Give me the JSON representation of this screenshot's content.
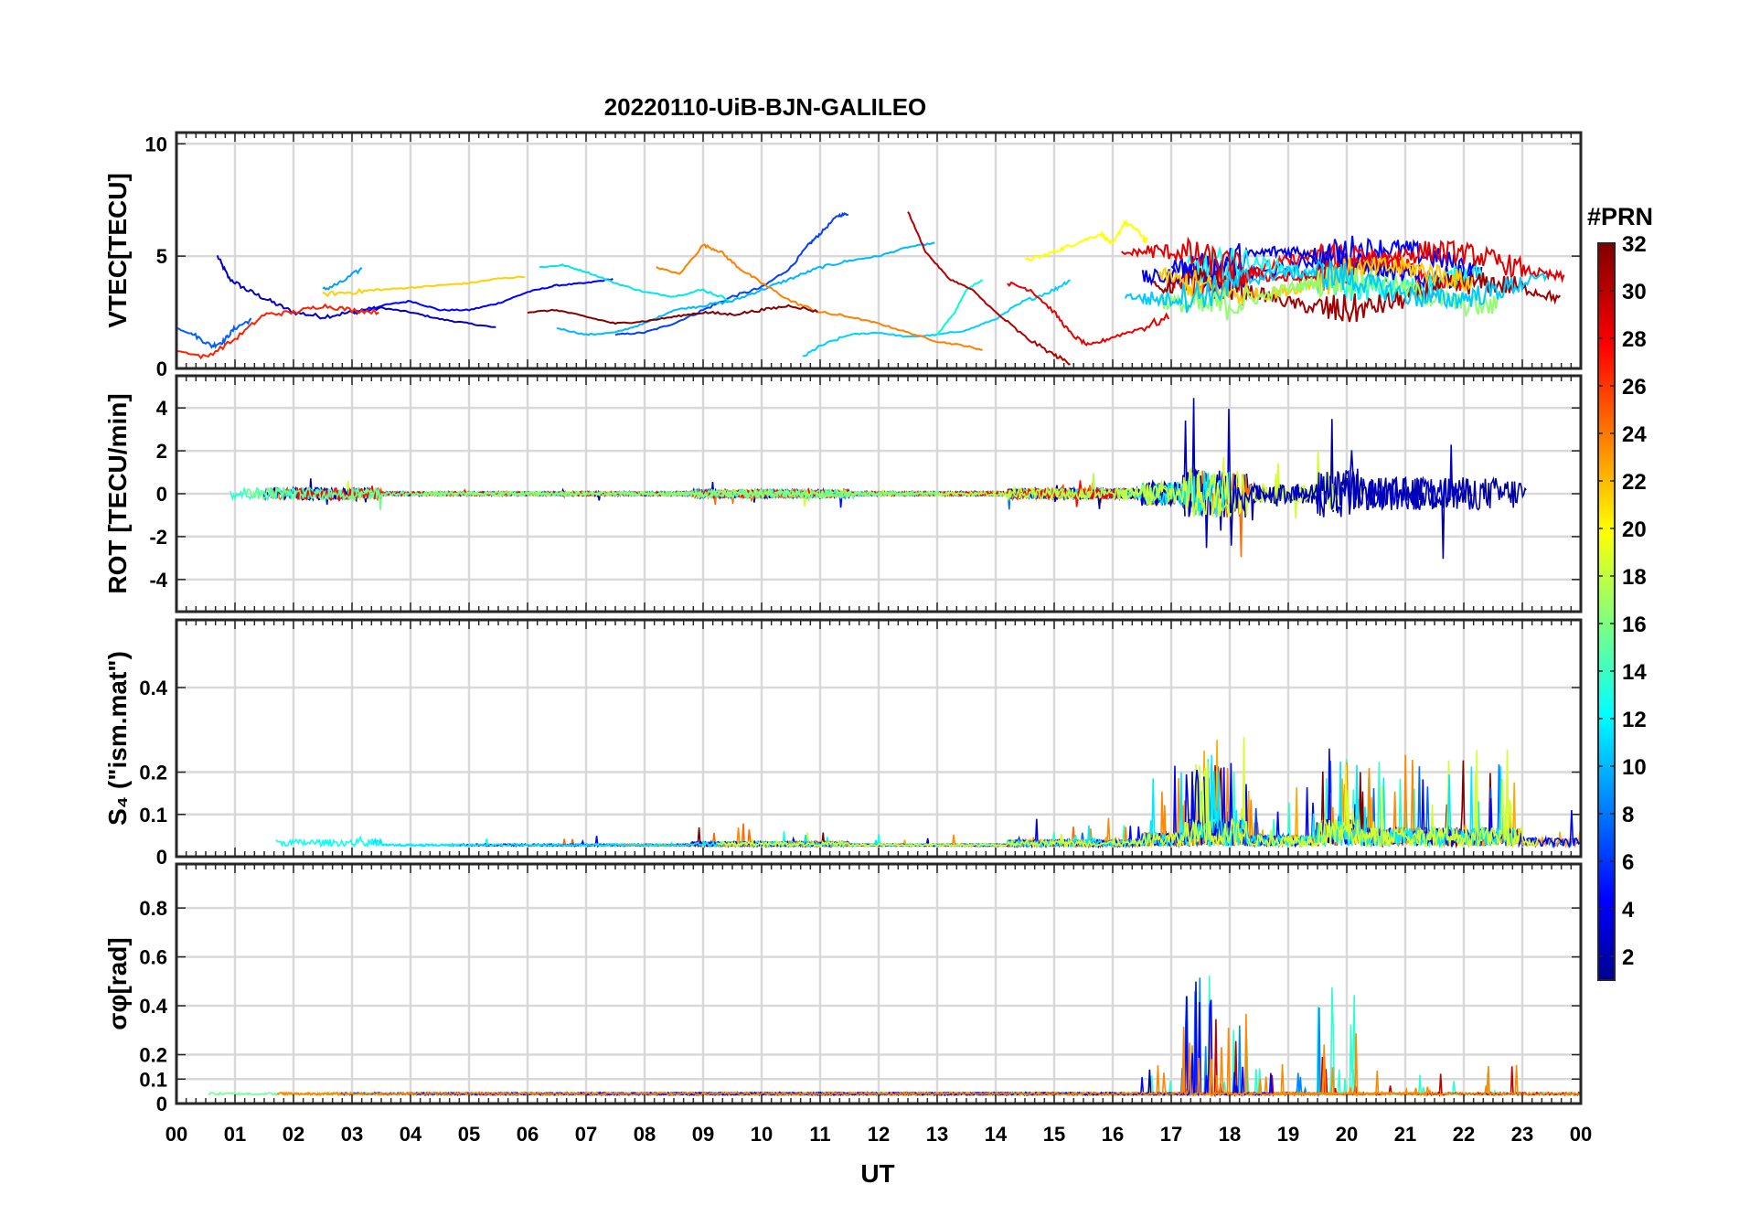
{
  "chart_data": {
    "type": "line",
    "title": "20220110-UiB-BJN-GALILEO",
    "xlabel": "UT",
    "x_ticks": [
      "00",
      "01",
      "02",
      "03",
      "04",
      "05",
      "06",
      "07",
      "08",
      "09",
      "10",
      "11",
      "12",
      "13",
      "14",
      "15",
      "16",
      "17",
      "18",
      "19",
      "20",
      "21",
      "22",
      "23",
      "00"
    ],
    "xlim": [
      0,
      24
    ],
    "grid": true,
    "colorbar": {
      "label": "#PRN",
      "ticks": [
        2,
        4,
        6,
        8,
        10,
        12,
        14,
        16,
        18,
        20,
        22,
        24,
        26,
        28,
        30,
        32
      ],
      "range": [
        1,
        32
      ],
      "colormap": "jet",
      "placement": "right"
    },
    "panels": [
      {
        "name": "vtec",
        "ylabel": "VTEC[TECU]",
        "ylim": [
          0,
          10.5
        ],
        "y_ticks": [
          0,
          5,
          10
        ],
        "series": [
          {
            "prn": 3,
            "color": "#0000c8",
            "points": [
              [
                0.7,
                5.0
              ],
              [
                0.9,
                4.0
              ],
              [
                1.2,
                3.5
              ],
              [
                1.6,
                3.0
              ],
              [
                2.0,
                2.5
              ],
              [
                2.5,
                2.3
              ],
              [
                3.0,
                2.5
              ],
              [
                3.5,
                2.7
              ],
              [
                4.0,
                2.5
              ],
              [
                4.5,
                2.2
              ],
              [
                5.0,
                2.0
              ],
              [
                5.5,
                1.8
              ]
            ]
          },
          {
            "prn": 5,
            "color": "#0000ff",
            "points": [
              [
                3.0,
                2.5
              ],
              [
                3.5,
                2.8
              ],
              [
                4.0,
                3.0
              ],
              [
                4.5,
                2.6
              ],
              [
                5.0,
                2.6
              ],
              [
                5.5,
                2.9
              ],
              [
                6.0,
                3.4
              ],
              [
                6.5,
                3.7
              ],
              [
                7.0,
                3.8
              ],
              [
                7.5,
                4.0
              ]
            ]
          },
          {
            "prn": 7,
            "color": "#0040ff",
            "points": [
              [
                7.5,
                1.5
              ],
              [
                8.0,
                1.6
              ],
              [
                8.5,
                2.0
              ],
              [
                9.0,
                2.6
              ],
              [
                9.5,
                3.2
              ],
              [
                10.0,
                3.6
              ],
              [
                10.5,
                4.5
              ],
              [
                10.8,
                5.5
              ],
              [
                11.0,
                6.0
              ],
              [
                11.3,
                6.8
              ],
              [
                11.5,
                6.9
              ]
            ]
          },
          {
            "prn": 8,
            "color": "#0060ff",
            "points": [
              [
                0.0,
                1.8
              ],
              [
                0.3,
                1.5
              ],
              [
                0.6,
                1.0
              ],
              [
                0.8,
                1.2
              ],
              [
                1.0,
                1.8
              ],
              [
                1.3,
                2.2
              ]
            ]
          },
          {
            "prn": 10,
            "color": "#00a0ff",
            "points": [
              [
                2.5,
                3.5
              ],
              [
                2.8,
                3.8
              ],
              [
                3.2,
                4.5
              ]
            ]
          },
          {
            "prn": 11,
            "color": "#00b8ff",
            "points": [
              [
                6.5,
                1.8
              ],
              [
                7.0,
                1.5
              ],
              [
                7.5,
                1.6
              ],
              [
                8.0,
                2.0
              ],
              [
                8.5,
                2.6
              ],
              [
                9.0,
                2.8
              ],
              [
                9.5,
                3.0
              ],
              [
                10.0,
                3.5
              ],
              [
                10.5,
                4.0
              ],
              [
                11.0,
                4.5
              ],
              [
                11.5,
                4.8
              ],
              [
                12.0,
                5.0
              ],
              [
                12.5,
                5.4
              ],
              [
                13.0,
                5.6
              ]
            ]
          },
          {
            "prn": 12,
            "color": "#00d0ff",
            "points": [
              [
                10.7,
                0.5
              ],
              [
                11.0,
                1.0
              ],
              [
                11.5,
                1.5
              ],
              [
                12.0,
                1.6
              ],
              [
                12.5,
                1.4
              ],
              [
                13.0,
                1.5
              ],
              [
                13.5,
                1.7
              ],
              [
                14.0,
                2.2
              ],
              [
                14.5,
                3.0
              ],
              [
                15.0,
                3.5
              ],
              [
                15.3,
                4.0
              ]
            ]
          },
          {
            "prn": 13,
            "color": "#00e8e8",
            "points": [
              [
                6.2,
                4.5
              ],
              [
                6.6,
                4.6
              ],
              [
                7.0,
                4.3
              ],
              [
                7.5,
                3.8
              ],
              [
                8.0,
                3.4
              ],
              [
                8.5,
                3.2
              ],
              [
                9.0,
                3.5
              ],
              [
                9.5,
                3.0
              ]
            ]
          },
          {
            "prn": 14,
            "color": "#00ffd0",
            "points": [
              [
                13.0,
                1.5
              ],
              [
                13.3,
                2.5
              ],
              [
                13.5,
                3.5
              ],
              [
                13.8,
                4.0
              ]
            ]
          },
          {
            "prn": 20,
            "color": "#ffff00",
            "points": [
              [
                14.5,
                4.8
              ],
              [
                14.8,
                5.0
              ],
              [
                15.1,
                5.3
              ],
              [
                15.4,
                5.6
              ],
              [
                15.8,
                6.0
              ],
              [
                16.0,
                5.5
              ],
              [
                16.2,
                6.5
              ],
              [
                16.4,
                6.2
              ],
              [
                16.6,
                5.6
              ]
            ]
          },
          {
            "prn": 22,
            "color": "#ffd000",
            "points": [
              [
                2.5,
                3.3
              ],
              [
                3.0,
                3.4
              ],
              [
                3.5,
                3.5
              ],
              [
                4.0,
                3.6
              ],
              [
                4.5,
                3.7
              ],
              [
                5.0,
                3.8
              ],
              [
                5.5,
                4.0
              ],
              [
                6.0,
                4.1
              ]
            ]
          },
          {
            "prn": 24,
            "color": "#ff8000",
            "points": [
              [
                8.2,
                4.5
              ],
              [
                8.6,
                4.2
              ],
              [
                9.0,
                5.5
              ],
              [
                9.3,
                5.2
              ],
              [
                9.6,
                4.5
              ],
              [
                10.0,
                3.8
              ],
              [
                10.5,
                3.0
              ],
              [
                11.0,
                2.5
              ],
              [
                11.5,
                2.3
              ],
              [
                12.0,
                2.0
              ],
              [
                12.5,
                1.6
              ],
              [
                13.0,
                1.2
              ],
              [
                13.5,
                1.0
              ],
              [
                13.8,
                0.8
              ]
            ]
          },
          {
            "prn": 28,
            "color": "#ff2000",
            "points": [
              [
                0.0,
                0.8
              ],
              [
                0.5,
                0.5
              ],
              [
                1.0,
                1.3
              ],
              [
                1.5,
                2.4
              ],
              [
                2.0,
                2.5
              ],
              [
                2.5,
                2.8
              ],
              [
                3.0,
                2.6
              ],
              [
                3.5,
                2.5
              ]
            ]
          },
          {
            "prn": 30,
            "color": "#e80000",
            "points": [
              [
                14.2,
                3.8
              ],
              [
                14.6,
                3.5
              ],
              [
                15.0,
                2.5
              ],
              [
                15.3,
                1.5
              ],
              [
                15.6,
                1.0
              ],
              [
                16.0,
                1.4
              ],
              [
                16.5,
                1.8
              ],
              [
                17.0,
                2.3
              ]
            ]
          },
          {
            "prn": 31,
            "color": "#b00000",
            "points": [
              [
                12.5,
                7.0
              ],
              [
                12.8,
                5.2
              ],
              [
                13.2,
                4.0
              ],
              [
                13.6,
                3.5
              ],
              [
                14.0,
                2.5
              ],
              [
                14.5,
                1.4
              ],
              [
                15.0,
                0.6
              ],
              [
                15.3,
                0.2
              ]
            ]
          },
          {
            "prn": 32,
            "color": "#800000",
            "points": [
              [
                6.0,
                2.5
              ],
              [
                6.5,
                2.6
              ],
              [
                7.0,
                2.3
              ],
              [
                7.5,
                2.0
              ],
              [
                8.0,
                2.1
              ],
              [
                8.5,
                2.3
              ],
              [
                9.0,
                2.5
              ],
              [
                9.5,
                2.4
              ],
              [
                10.0,
                2.6
              ],
              [
                10.5,
                2.8
              ],
              [
                11.0,
                2.5
              ]
            ]
          }
        ]
      },
      {
        "name": "rot",
        "ylabel": "ROT [TECU/min]",
        "ylim": [
          -5.5,
          5.5
        ],
        "y_ticks": [
          -4,
          -2,
          0,
          2,
          4
        ]
      },
      {
        "name": "s4",
        "ylabel": "S₄ (\"ism.mat\")",
        "ylim": [
          0,
          0.56
        ],
        "y_ticks": [
          0,
          0.1,
          0.2,
          0.4
        ],
        "y_tick_labels": [
          "0",
          "0.1",
          "0.2",
          "0.4"
        ]
      },
      {
        "name": "sigma-phi",
        "ylabel": "σφ[rad]",
        "ylim": [
          0,
          0.98
        ],
        "y_ticks": [
          0,
          0.1,
          0.2,
          0.4,
          0.6,
          0.8
        ],
        "y_tick_labels": [
          "0",
          "0.1",
          "0.2",
          "0.4",
          "0.6",
          "0.8"
        ]
      }
    ]
  }
}
